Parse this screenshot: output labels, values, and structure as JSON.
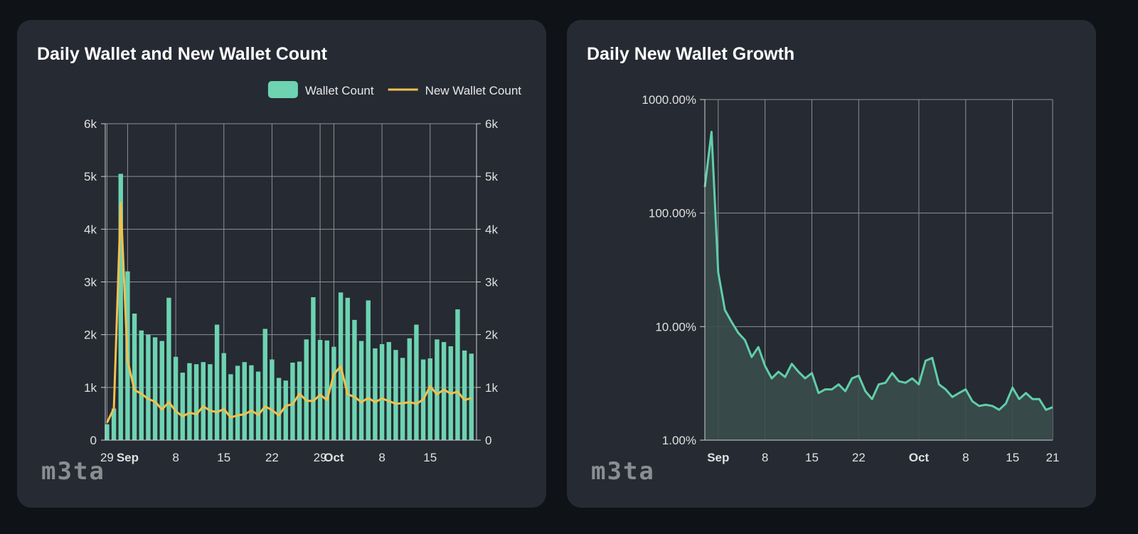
{
  "chart_data": [
    {
      "type": "bar_line",
      "title": "Daily Wallet and New Wallet Count",
      "watermark": "m3ta",
      "x": [
        "08-29",
        "08-30",
        "08-31",
        "09-01",
        "09-02",
        "09-03",
        "09-04",
        "09-05",
        "09-06",
        "09-07",
        "09-08",
        "09-09",
        "09-10",
        "09-11",
        "09-12",
        "09-13",
        "09-14",
        "09-15",
        "09-16",
        "09-17",
        "09-18",
        "09-19",
        "09-20",
        "09-21",
        "09-22",
        "09-23",
        "09-24",
        "09-25",
        "09-26",
        "09-27",
        "09-28",
        "09-29",
        "09-30",
        "10-01",
        "10-02",
        "10-03",
        "10-04",
        "10-05",
        "10-06",
        "10-07",
        "10-08",
        "10-09",
        "10-10",
        "10-11",
        "10-12",
        "10-13",
        "10-14",
        "10-15",
        "10-16",
        "10-17",
        "10-18",
        "10-19",
        "10-20",
        "10-21"
      ],
      "series": [
        {
          "name": "Wallet Count",
          "kind": "bar",
          "color": "#6dd3b0",
          "values": [
            300,
            600,
            5050,
            3200,
            2400,
            2080,
            2000,
            1950,
            1880,
            2700,
            1580,
            1280,
            1460,
            1440,
            1480,
            1440,
            2190,
            1650,
            1250,
            1410,
            1480,
            1420,
            1300,
            2110,
            1530,
            1180,
            1130,
            1470,
            1490,
            1910,
            2710,
            1900,
            1890,
            1770,
            2800,
            2700,
            2280,
            1880,
            2650,
            1740,
            1820,
            1860,
            1710,
            1560,
            1930,
            2190,
            1530,
            1550,
            1910,
            1860,
            1780,
            2480,
            1700,
            1640
          ]
        },
        {
          "name": "New Wallet Count",
          "kind": "line",
          "axis": "y2",
          "color": "#f2c14e",
          "values": [
            330,
            600,
            4500,
            1500,
            950,
            880,
            780,
            730,
            580,
            720,
            550,
            450,
            520,
            490,
            640,
            560,
            530,
            590,
            430,
            470,
            490,
            560,
            480,
            640,
            570,
            470,
            650,
            680,
            880,
            750,
            740,
            860,
            760,
            1250,
            1400,
            870,
            820,
            720,
            800,
            720,
            790,
            740,
            690,
            700,
            720,
            690,
            770,
            1020,
            870,
            960,
            880,
            920,
            760,
            800
          ]
        }
      ],
      "xticks": [
        {
          "value": "08-29",
          "label": "29"
        },
        {
          "value": "09-01",
          "label": "Sep"
        },
        {
          "value": "09-08",
          "label": "8"
        },
        {
          "value": "09-15",
          "label": "15"
        },
        {
          "value": "09-22",
          "label": "22"
        },
        {
          "value": "09-29",
          "label": "29"
        },
        {
          "value": "10-01",
          "label": "Oct"
        },
        {
          "value": "10-08",
          "label": "8"
        },
        {
          "value": "10-15",
          "label": "15"
        }
      ],
      "ylim": [
        0,
        6000
      ],
      "yticks": [
        0,
        {
          "value": 1000,
          "label": "1k"
        },
        {
          "value": 2000,
          "label": "2k"
        },
        {
          "value": 3000,
          "label": "3k"
        },
        {
          "value": 4000,
          "label": "4k"
        },
        {
          "value": 5000,
          "label": "5k"
        },
        {
          "value": 6000,
          "label": "6k"
        }
      ],
      "y2lim": [
        0,
        6000
      ],
      "y2ticks": [
        0,
        {
          "value": 1000,
          "label": "1k"
        },
        {
          "value": 2000,
          "label": "2k"
        },
        {
          "value": 3000,
          "label": "3k"
        },
        {
          "value": 4000,
          "label": "4k"
        },
        {
          "value": 5000,
          "label": "5k"
        },
        {
          "value": 6000,
          "label": "6k"
        }
      ],
      "grid": true,
      "legend": "top-right"
    },
    {
      "type": "area",
      "title": "Daily New Wallet Growth",
      "watermark": "m3ta",
      "x": [
        "08-30",
        "08-31",
        "09-01",
        "09-02",
        "09-03",
        "09-04",
        "09-05",
        "09-06",
        "09-07",
        "09-08",
        "09-09",
        "09-10",
        "09-11",
        "09-12",
        "09-13",
        "09-14",
        "09-15",
        "09-16",
        "09-17",
        "09-18",
        "09-19",
        "09-20",
        "09-21",
        "09-22",
        "09-23",
        "09-24",
        "09-25",
        "09-26",
        "09-27",
        "09-28",
        "09-29",
        "09-30",
        "10-01",
        "10-02",
        "10-03",
        "10-04",
        "10-05",
        "10-06",
        "10-07",
        "10-08",
        "10-09",
        "10-10",
        "10-11",
        "10-12",
        "10-13",
        "10-14",
        "10-15",
        "10-16",
        "10-17",
        "10-18",
        "10-19",
        "10-20",
        "10-21"
      ],
      "values": [
        170,
        520,
        30,
        14,
        11,
        8.8,
        7.6,
        5.4,
        6.6,
        4.5,
        3.5,
        4,
        3.6,
        4.7,
        4,
        3.5,
        3.9,
        2.6,
        2.8,
        2.8,
        3.1,
        2.7,
        3.5,
        3.7,
        2.7,
        2.3,
        3.1,
        3.2,
        3.9,
        3.3,
        3.2,
        3.5,
        3.1,
        5.0,
        5.3,
        3.1,
        2.8,
        2.4,
        2.6,
        2.8,
        2.2,
        2.0,
        2.05,
        2.0,
        1.85,
        2.1,
        2.9,
        2.3,
        2.6,
        2.3,
        2.3,
        1.85,
        1.95
      ],
      "color": "#5fcfa9",
      "fill": "#3a4c4a",
      "log_y": true,
      "xticks": [
        {
          "value": "09-01",
          "label": "Sep"
        },
        {
          "value": "09-08",
          "label": "8"
        },
        {
          "value": "09-15",
          "label": "15"
        },
        {
          "value": "09-22",
          "label": "22"
        },
        {
          "value": "10-01",
          "label": "Oct"
        },
        {
          "value": "10-08",
          "label": "8"
        },
        {
          "value": "10-15",
          "label": "15"
        },
        {
          "value": "10-21",
          "label": "21"
        }
      ],
      "ylim": [
        1,
        1000
      ],
      "yticks": [
        {
          "value": 1,
          "label": "1.00%"
        },
        {
          "value": 10,
          "label": "10.00%"
        },
        {
          "value": 100,
          "label": "100.00%"
        },
        {
          "value": 1000,
          "label": "1000.00%"
        }
      ],
      "grid": true
    }
  ]
}
